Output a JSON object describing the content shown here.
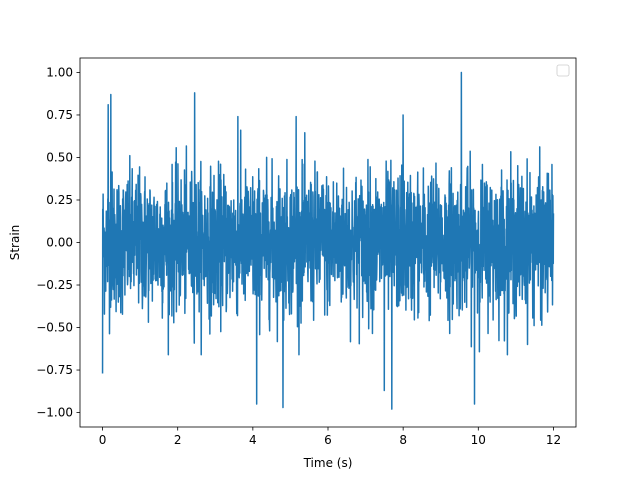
{
  "chart_data": {
    "type": "line",
    "title": "",
    "xlabel": "Time (s)",
    "ylabel": "Strain",
    "xlim": [
      -0.6,
      12.6
    ],
    "ylim": [
      -1.085,
      1.085
    ],
    "x_ticks": [
      0,
      2,
      4,
      6,
      8,
      10,
      12
    ],
    "x_tick_labels": [
      "0",
      "2",
      "4",
      "6",
      "8",
      "10",
      "12"
    ],
    "y_ticks": [
      -1.0,
      -0.75,
      -0.5,
      -0.25,
      0.0,
      0.25,
      0.5,
      0.75,
      1.0
    ],
    "y_tick_labels": [
      "−1.00",
      "−0.75",
      "−0.50",
      "−0.25",
      "0.00",
      "0.25",
      "0.50",
      "0.75",
      "1.00"
    ],
    "grid": false,
    "legend": {
      "placement": "top-right",
      "entries": []
    },
    "series": [
      {
        "color": "#1f77b4",
        "x_start": 0,
        "x_end": 12,
        "num_points": 2400,
        "typical_range": [
          -0.45,
          0.45
        ],
        "peaks": [
          {
            "x": 0.15,
            "y": 0.81
          },
          {
            "x": 0.22,
            "y": 0.87
          },
          {
            "x": 2.45,
            "y": 0.88
          },
          {
            "x": 9.55,
            "y": 1.0
          },
          {
            "x": 3.6,
            "y": 0.74
          },
          {
            "x": 5.15,
            "y": 0.74
          },
          {
            "x": 8.0,
            "y": 0.75
          },
          {
            "x": 4.1,
            "y": -0.95
          },
          {
            "x": 4.8,
            "y": -0.97
          },
          {
            "x": 7.5,
            "y": -0.87
          },
          {
            "x": 7.7,
            "y": -0.98
          },
          {
            "x": 9.9,
            "y": -0.95
          },
          {
            "x": 0.0,
            "y": -0.77
          }
        ]
      }
    ]
  }
}
